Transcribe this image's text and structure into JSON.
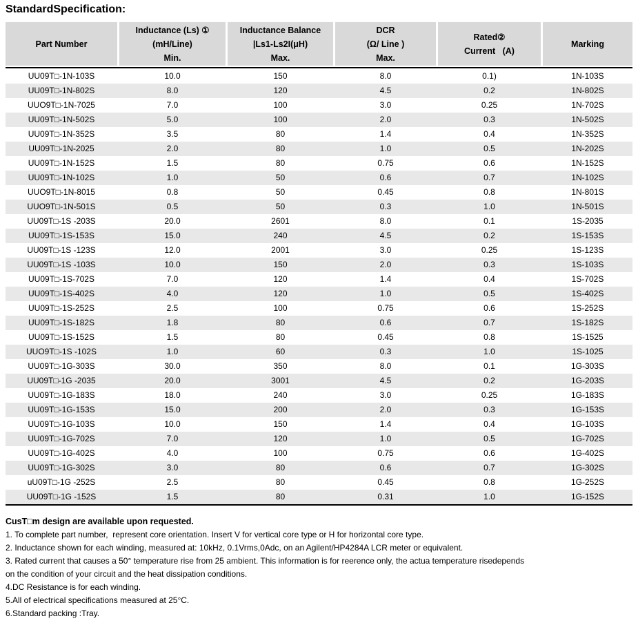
{
  "page": {
    "title": "StandardSpecification:"
  },
  "colors": {
    "header_bg": "#d9d9d9",
    "stripe_bg": "#e8e8e8",
    "rule": "#000000"
  },
  "table": {
    "columns": [
      {
        "name": "part-number",
        "lines": [
          "Part Number"
        ]
      },
      {
        "name": "inductance",
        "lines": [
          "Inductance (Ls) ①",
          "(mH/Line)",
          "Min."
        ]
      },
      {
        "name": "inductance-balance",
        "lines": [
          "Inductance Balance",
          "|Ls1-Ls2I(μH)",
          "Max."
        ]
      },
      {
        "name": "dcr",
        "lines": [
          "DCR",
          "(Ω/ Line )",
          "Max."
        ]
      },
      {
        "name": "rated-current",
        "lines": [
          "Rated②",
          "Current   (A)"
        ]
      },
      {
        "name": "marking",
        "lines": [
          "Marking"
        ]
      }
    ],
    "rows": [
      [
        "UU09T□-1N-103S",
        "10.0",
        "150",
        "8.0",
        "0.1)",
        "1N-103S"
      ],
      [
        "UU09T□-1N-802S",
        "8.0",
        "120",
        "4.5",
        "0.2",
        "1N-802S"
      ],
      [
        "UUO9T□-1N-7025",
        "7.0",
        "100",
        "3.0",
        "0.25",
        "1N-702S"
      ],
      [
        "UU09T□-1N-502S",
        "5.0",
        "100",
        "2.0",
        "0.3",
        "1N-502S"
      ],
      [
        "UU09T□-1N-352S",
        "3.5",
        "80",
        "1.4",
        "0.4",
        "1N-352S"
      ],
      [
        "UU09T□-1N-2025",
        "2.0",
        "80",
        "1.0",
        "0.5",
        "1N-202S"
      ],
      [
        "UU09T□-1N-152S",
        "1.5",
        "80",
        "0.75",
        "0.6",
        "1N-152S"
      ],
      [
        "UU09T□-1N-102S",
        "1.0",
        "50",
        "0.6",
        "0.7",
        "1N-102S"
      ],
      [
        "UUO9T□-1N-8015",
        "0.8",
        "50",
        "0.45",
        "0.8",
        "1N-801S"
      ],
      [
        "UUO9T□-1N-501S",
        "0.5",
        "50",
        "0.3",
        "1.0",
        "1N-501S"
      ],
      [
        "UU09T□-1S -203S",
        "20.0",
        "2601",
        "8.0",
        "0.1",
        "1S-2035"
      ],
      [
        "UU09T□-1S-153S",
        "15.0",
        "240",
        "4.5",
        "0.2",
        "1S-153S"
      ],
      [
        "UU09T□-1S -123S",
        "12.0",
        "2001",
        "3.0",
        "0.25",
        "1S-123S"
      ],
      [
        "UU09T□-1S -103S",
        "10.0",
        "150",
        "2.0",
        "0.3",
        "1S-103S"
      ],
      [
        "UU09T□-1S-702S",
        "7.0",
        "120",
        "1.4",
        "0.4",
        "1S-702S"
      ],
      [
        "UU09T□-1S-402S",
        "4.0",
        "120",
        "1.0",
        "0.5",
        "1S-402S"
      ],
      [
        "UU09T□-1S-252S",
        "2.5",
        "100",
        "0.75",
        "0.6",
        "1S-252S"
      ],
      [
        "UU09T□-1S-182S",
        "1.8",
        "80",
        "0.6",
        "0.7",
        "1S-182S"
      ],
      [
        "UU09T□-1S-152S",
        "1.5",
        "80",
        "0.45",
        "0.8",
        "1S-1525"
      ],
      [
        "UUO9T□-1S -102S",
        "1.0",
        "60",
        "0.3",
        "1.0",
        "1S-1025"
      ],
      [
        "UU09T□-1G-303S",
        "30.0",
        "350",
        "8.0",
        "0.1",
        "1G-303S"
      ],
      [
        "UU09T□-1G -2035",
        "20.0",
        "3001",
        "4.5",
        "0.2",
        "1G-203S"
      ],
      [
        "UU09T□-1G-183S",
        "18.0",
        "240",
        "3.0",
        "0.25",
        "1G-183S"
      ],
      [
        "UU09T□-1G-153S",
        "15.0",
        "200",
        "2.0",
        "0.3",
        "1G-153S"
      ],
      [
        "UU09T□-1G-103S",
        "10.0",
        "150",
        "1.4",
        "0.4",
        "1G-103S"
      ],
      [
        "UU09T□-1G-702S",
        "7.0",
        "120",
        "1.0",
        "0.5",
        "1G-702S"
      ],
      [
        "UU09T□-1G-402S",
        "4.0",
        "100",
        "0.75",
        "0.6",
        "1G-402S"
      ],
      [
        "UU09T□-1G-302S",
        "3.0",
        "80",
        "0.6",
        "0.7",
        "1G-302S"
      ],
      [
        "uU09T□-1G -252S",
        "2.5",
        "80",
        "0.45",
        "0.8",
        "1G-252S"
      ],
      [
        "UU09T□-1G -152S",
        "1.5",
        "80",
        "0.31",
        "1.0",
        "1G-152S"
      ]
    ]
  },
  "footer": {
    "custom_line": "CusT□m design are available upon requested.",
    "notes": [
      "1. To complete part number,  represent core orientation. Insert V for vertical core type or H for horizontal core type.",
      "2. Inductance shown for each winding, measured at: 10kHz, 0.1Vrms,0Adc, on an Agilent/HP4284A LCR meter or equivalent.",
      "3. Rated current that causes a 50° temperature rise from 25 ambient. This information is for reerence only, the actua temperature risedepends",
      "on the condition of your circuit and the heat dissipation conditions.",
      "4.DC Resistance is for each winding.",
      "5.All of electrical specifications measured at 25°C.",
      "6.Standard packing :Tray."
    ]
  }
}
